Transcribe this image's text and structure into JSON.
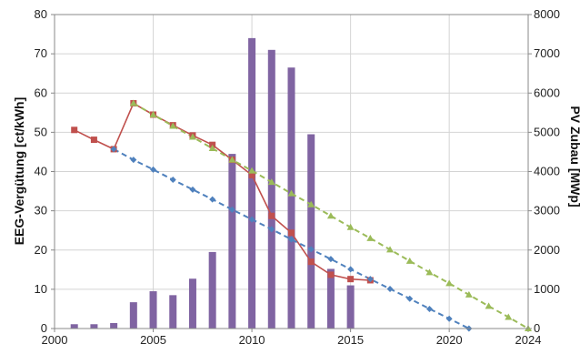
{
  "chart_data": {
    "type": "bar+line",
    "ylabel_left": "EEG-Vergütung [ct/kWh]",
    "ylabel_right": "PV Zubau [MWp]",
    "xlim": [
      2000,
      2024
    ],
    "ylim_left": [
      0,
      80
    ],
    "ylim_right": [
      0,
      8000
    ],
    "x_ticks": [
      "2000",
      "2005",
      "2010",
      "2015",
      "2020",
      "2024"
    ],
    "y_left_ticks": [
      "0",
      "10",
      "20",
      "30",
      "40",
      "50",
      "60",
      "70",
      "80"
    ],
    "y_right_ticks": [
      "0",
      "1000",
      "2000",
      "3000",
      "4000",
      "5000",
      "6000",
      "7000",
      "8000"
    ],
    "grid": true,
    "bars": {
      "axis": "right",
      "color": "#8064a2",
      "x": [
        2001,
        2002,
        2003,
        2004,
        2005,
        2006,
        2007,
        2008,
        2009,
        2010,
        2011,
        2012,
        2013,
        2014,
        2015
      ],
      "values": [
        110,
        110,
        140,
        670,
        950,
        850,
        1270,
        1950,
        4450,
        7400,
        7100,
        6650,
        4950,
        1520,
        1100
      ]
    },
    "series": [
      {
        "color": "#c0504d",
        "style": "solid",
        "marker": "square",
        "x": [
          2001,
          2002,
          2003,
          2004,
          2005,
          2006,
          2007,
          2008,
          2009,
          2010,
          2011,
          2012,
          2013,
          2014,
          2015,
          2016
        ],
        "values": [
          50.6,
          48.1,
          45.7,
          57.4,
          54.5,
          51.8,
          49.2,
          46.8,
          43.0,
          39.1,
          28.7,
          24.4,
          17.0,
          13.7,
          12.6,
          12.3
        ]
      },
      {
        "color": "#4f81bd",
        "style": "dashed",
        "marker": "diamond",
        "x": [
          2003,
          2004,
          2005,
          2006,
          2007,
          2008,
          2009,
          2010,
          2011,
          2012,
          2013,
          2014,
          2015,
          2016,
          2017,
          2018,
          2019,
          2020,
          2021
        ],
        "values": [
          45.7,
          43.0,
          40.5,
          37.9,
          35.4,
          32.9,
          30.3,
          27.8,
          25.3,
          22.7,
          20.2,
          17.7,
          15.1,
          12.6,
          10.1,
          7.6,
          5.0,
          2.5,
          0
        ]
      },
      {
        "color": "#9bbb59",
        "style": "dashed",
        "marker": "triangle",
        "x": [
          2004,
          2005,
          2006,
          2007,
          2008,
          2009,
          2010,
          2011,
          2012,
          2013,
          2014,
          2015,
          2016,
          2017,
          2018,
          2019,
          2020,
          2021,
          2022,
          2023,
          2024
        ],
        "values": [
          57.4,
          54.5,
          51.6,
          48.8,
          45.9,
          43.0,
          40.2,
          37.3,
          34.4,
          31.6,
          28.7,
          25.8,
          23.0,
          20.1,
          17.2,
          14.3,
          11.5,
          8.6,
          5.7,
          2.9,
          0
        ]
      }
    ]
  }
}
